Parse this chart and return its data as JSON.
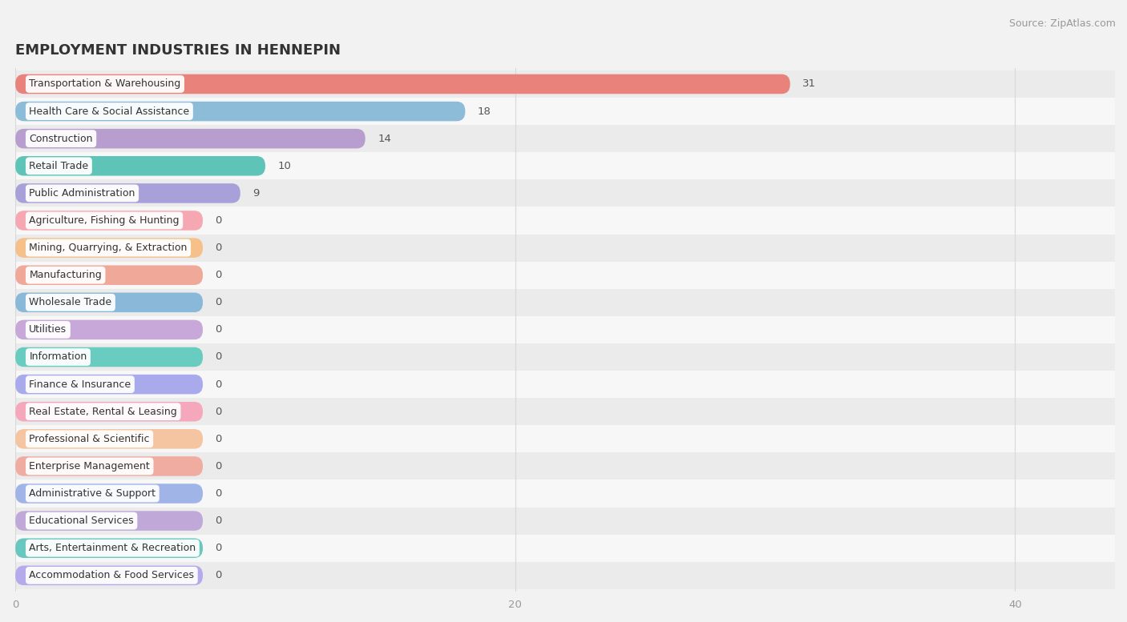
{
  "title": "EMPLOYMENT INDUSTRIES IN HENNEPIN",
  "source": "Source: ZipAtlas.com",
  "categories": [
    "Transportation & Warehousing",
    "Health Care & Social Assistance",
    "Construction",
    "Retail Trade",
    "Public Administration",
    "Agriculture, Fishing & Hunting",
    "Mining, Quarrying, & Extraction",
    "Manufacturing",
    "Wholesale Trade",
    "Utilities",
    "Information",
    "Finance & Insurance",
    "Real Estate, Rental & Leasing",
    "Professional & Scientific",
    "Enterprise Management",
    "Administrative & Support",
    "Educational Services",
    "Arts, Entertainment & Recreation",
    "Accommodation & Food Services"
  ],
  "values": [
    31,
    18,
    14,
    10,
    9,
    0,
    0,
    0,
    0,
    0,
    0,
    0,
    0,
    0,
    0,
    0,
    0,
    0,
    0
  ],
  "bar_colors": [
    "#e8827a",
    "#8dbcd8",
    "#b89ece",
    "#5ec4b8",
    "#a8a0d8",
    "#f5a8b2",
    "#f5c08a",
    "#f0a898",
    "#8ab8d8",
    "#c8a8d8",
    "#68ccc0",
    "#a8aaec",
    "#f5a8bc",
    "#f5c4a0",
    "#f0aca0",
    "#a0b4e8",
    "#c0a8d8",
    "#68c8c0",
    "#b4aaec"
  ],
  "zero_bar_width": 7.5,
  "xlim_max": 44,
  "xticks": [
    0,
    20,
    40
  ],
  "bg_color": "#f2f2f2",
  "row_colors": [
    "#ebebeb",
    "#f7f7f7"
  ],
  "grid_color": "#d8d8d8",
  "title_fontsize": 13,
  "source_fontsize": 9,
  "label_fontsize": 9,
  "value_fontsize": 9.5,
  "bar_height": 0.72
}
